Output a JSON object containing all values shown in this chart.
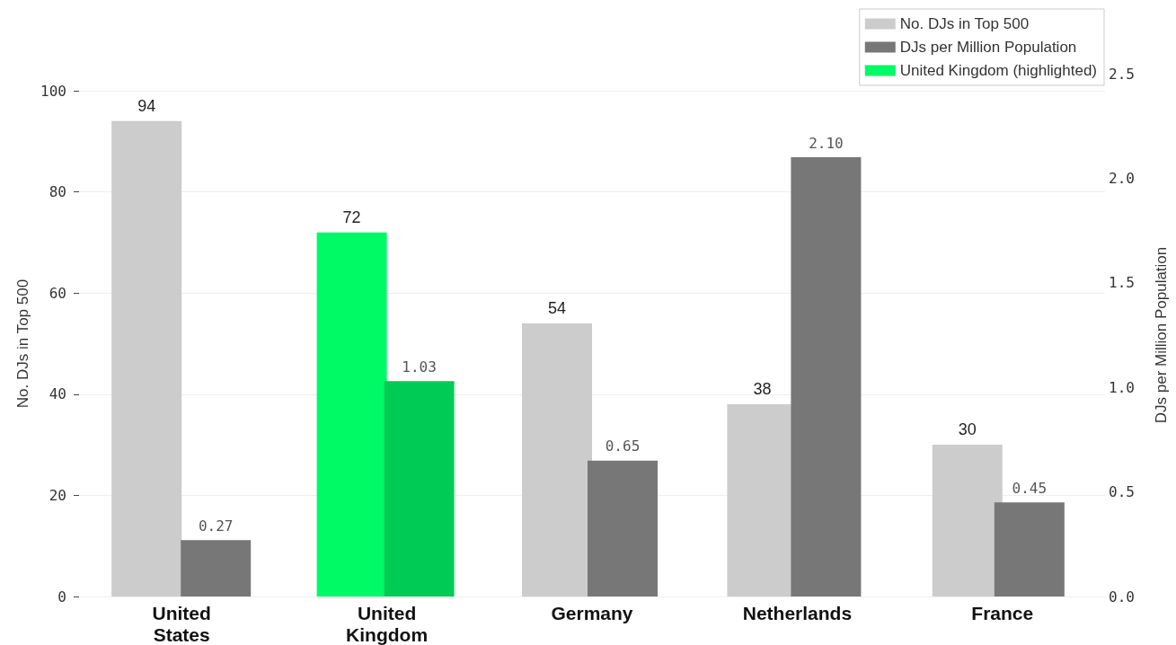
{
  "chart_data": {
    "type": "bar",
    "ylabel": "No. DJs in Top 500",
    "y2label": "DJs per Million Population",
    "categories": [
      "United States",
      "United Kingdom",
      "Germany",
      "Netherlands",
      "France"
    ],
    "series": [
      {
        "name": "No. DJs in Top 500",
        "color": "#cccccc",
        "colors": [
          "#cccccc",
          "#00fa65",
          "#cccccc",
          "#cccccc",
          "#cccccc"
        ],
        "values": [
          94,
          72,
          54,
          38,
          30
        ],
        "value_labels": [
          "94",
          "72",
          "54",
          "38",
          "30"
        ]
      },
      {
        "name": "DJs per Million Population",
        "color": "#777777",
        "colors": [
          "#777777",
          "#00cc55",
          "#777777",
          "#777777",
          "#777777"
        ],
        "values": [
          0.27,
          1.03,
          0.65,
          2.1,
          0.45
        ],
        "value_labels": [
          "0.27",
          "1.03",
          "0.65",
          "2.10",
          "0.45"
        ],
        "axis": "y2"
      },
      {
        "name": "United Kingdom (highlighted)",
        "type": "line",
        "color": "#00fa65",
        "values": [
          null,
          null,
          null,
          null,
          null
        ]
      }
    ],
    "ylim": [
      0,
      100
    ],
    "yticks": [
      0,
      20,
      40,
      60,
      80,
      100
    ],
    "y2lim": [
      0,
      2.5
    ],
    "y2ticks": [
      {
        "value": 0,
        "label": "0.0"
      },
      0.5,
      {
        "value": 1,
        "label": "1.0"
      },
      1.5,
      {
        "value": 2,
        "label": "2.0"
      },
      2.5
    ],
    "grid": "y",
    "legend": "top right"
  }
}
